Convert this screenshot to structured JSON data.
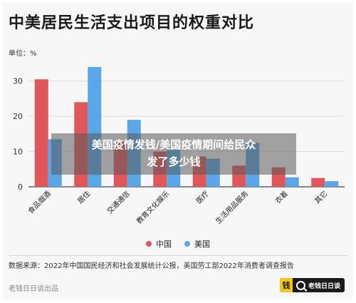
{
  "title": "中美居民生活支出项目的权重对比",
  "unit_label": "单位：%",
  "legend": [
    {
      "name": "中国",
      "color": "#e15759"
    },
    {
      "name": "美国",
      "color": "#5aa7e8"
    }
  ],
  "source": "数据来源：2022年中国国民经济和社会发展统计公报，美国劳工部2022年消费者调查报告",
  "footer": {
    "left_text": "老钱日日谈出品",
    "brand_mark": "钱",
    "brand_text": "老钱日日谈"
  },
  "overlay": {
    "line1": "美国疫情发钱/美国疫情期间给民众",
    "line2": "发了多少钱"
  },
  "chart_data": {
    "type": "bar",
    "title": "中美居民生活支出项目的权重对比",
    "ylabel": "单位：%",
    "ylim": [
      0,
      35
    ],
    "yticks": [
      0,
      10,
      20,
      30
    ],
    "grid": true,
    "legend_position": "bottom",
    "categories": [
      "食品烟酒",
      "居住",
      "交通通信",
      "教育文化娱乐",
      "医疗",
      "生活用品服务",
      "衣着",
      "其它"
    ],
    "series": [
      {
        "name": "中国",
        "color": "#e15759",
        "values": [
          30.5,
          24.0,
          13.0,
          10.0,
          8.6,
          6.0,
          5.5,
          2.5
        ]
      },
      {
        "name": "美国",
        "color": "#5aa7e8",
        "values": [
          13.5,
          34.0,
          19.0,
          10.5,
          8.0,
          12.5,
          2.7,
          1.6
        ]
      }
    ]
  }
}
